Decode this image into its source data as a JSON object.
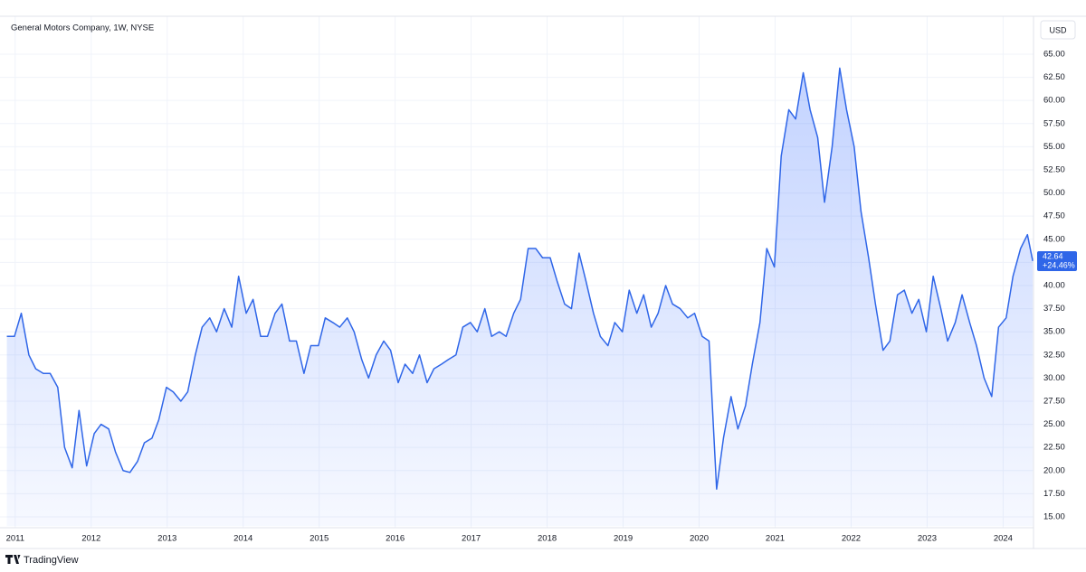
{
  "chart_data": {
    "type": "area",
    "title": "General Motors Company, 1W, NYSE",
    "currency": "USD",
    "brand": "TradingView",
    "change_label": "+24.46%",
    "color": "#2f66e8",
    "grid": true,
    "x": [
      2010.89,
      2010.99,
      2011.08,
      2011.18,
      2011.27,
      2011.37,
      2011.46,
      2011.56,
      2011.65,
      2011.75,
      2011.84,
      2011.94,
      2012.04,
      2012.13,
      2012.23,
      2012.32,
      2012.42,
      2012.51,
      2012.61,
      2012.7,
      2012.8,
      2012.89,
      2012.99,
      2013.08,
      2013.18,
      2013.27,
      2013.37,
      2013.46,
      2013.56,
      2013.65,
      2013.75,
      2013.85,
      2013.94,
      2014.04,
      2014.13,
      2014.23,
      2014.32,
      2014.42,
      2014.51,
      2014.61,
      2014.7,
      2014.8,
      2014.89,
      2014.99,
      2015.08,
      2015.18,
      2015.27,
      2015.37,
      2015.46,
      2015.56,
      2015.65,
      2015.75,
      2015.85,
      2015.94,
      2016.04,
      2016.13,
      2016.23,
      2016.32,
      2016.42,
      2016.51,
      2016.61,
      2016.7,
      2016.8,
      2016.89,
      2016.99,
      2017.08,
      2017.18,
      2017.27,
      2017.37,
      2017.46,
      2017.56,
      2017.65,
      2017.75,
      2017.85,
      2017.94,
      2018.04,
      2018.13,
      2018.23,
      2018.32,
      2018.42,
      2018.51,
      2018.61,
      2018.7,
      2018.8,
      2018.89,
      2018.99,
      2019.08,
      2019.18,
      2019.27,
      2019.37,
      2019.46,
      2019.56,
      2019.65,
      2019.75,
      2019.85,
      2019.94,
      2020.04,
      2020.13,
      2020.23,
      2020.32,
      2020.42,
      2020.51,
      2020.61,
      2020.7,
      2020.8,
      2020.89,
      2020.99,
      2021.08,
      2021.18,
      2021.27,
      2021.37,
      2021.46,
      2021.56,
      2021.65,
      2021.75,
      2021.85,
      2021.94,
      2022.04,
      2022.13,
      2022.23,
      2022.32,
      2022.42,
      2022.51,
      2022.61,
      2022.7,
      2022.8,
      2022.89,
      2022.99,
      2023.08,
      2023.18,
      2023.27,
      2023.37,
      2023.46,
      2023.56,
      2023.65,
      2023.75,
      2023.85,
      2023.94,
      2024.04,
      2024.13,
      2024.23,
      2024.32,
      2024.39
    ],
    "values": [
      34.5,
      34.5,
      37,
      32.5,
      31,
      30.5,
      30.5,
      29,
      22.5,
      20.3,
      26.5,
      20.5,
      24,
      25,
      24.5,
      22,
      20,
      19.8,
      21,
      23,
      23.5,
      25.5,
      29,
      28.5,
      27.5,
      28.5,
      32.5,
      35.5,
      36.5,
      35,
      37.5,
      35.5,
      41,
      37,
      38.5,
      34.5,
      34.5,
      37,
      38,
      34,
      34,
      30.5,
      33.5,
      33.5,
      36.5,
      36,
      35.5,
      36.5,
      35,
      32,
      30,
      32.5,
      34,
      33,
      29.5,
      31.5,
      30.5,
      32.5,
      29.5,
      31,
      31.5,
      32,
      32.5,
      35.5,
      36,
      35,
      37.5,
      34.5,
      35,
      34.5,
      37,
      38.5,
      44,
      44,
      43,
      43,
      40.5,
      38,
      37.5,
      43.5,
      40.5,
      37,
      34.5,
      33.5,
      36,
      35,
      39.5,
      37,
      39,
      35.5,
      37,
      40,
      38,
      37.5,
      36.5,
      37,
      34.5,
      34,
      18,
      23.5,
      28,
      24.5,
      27,
      31.5,
      36,
      44,
      42,
      54,
      59,
      58,
      63,
      59,
      56,
      49,
      55,
      63.5,
      59,
      55,
      48,
      43,
      38,
      33,
      34,
      39,
      39.5,
      37,
      38.5,
      35,
      41,
      37.5,
      34,
      36,
      39,
      36,
      33.5,
      30,
      28,
      35.5,
      36.5,
      41,
      44,
      45.5,
      42.64
    ],
    "xlim": [
      2010.8,
      2024.4
    ],
    "xticks": [
      2011,
      2012,
      2013,
      2014,
      2015,
      2016,
      2017,
      2018,
      2019,
      2020,
      2021,
      2022,
      2023,
      2024
    ],
    "ylim": [
      14,
      69.1
    ],
    "yticks": [
      {
        "value": 15,
        "label": "15.00"
      },
      {
        "value": 17.5,
        "label": "17.50"
      },
      {
        "value": 20,
        "label": "20.00"
      },
      {
        "value": 22.5,
        "label": "22.50"
      },
      {
        "value": 25,
        "label": "25.00"
      },
      {
        "value": 27.5,
        "label": "27.50"
      },
      {
        "value": 30,
        "label": "30.00"
      },
      {
        "value": 32.5,
        "label": "32.50"
      },
      {
        "value": 35,
        "label": "35.00"
      },
      {
        "value": 37.5,
        "label": "37.50"
      },
      {
        "value": 40,
        "label": "40.00"
      },
      {
        "value": 42.5,
        "label": "42.50"
      },
      {
        "value": 45,
        "label": "45.00"
      },
      {
        "value": 47.5,
        "label": "47.50"
      },
      {
        "value": 50,
        "label": "50.00"
      },
      {
        "value": 52.5,
        "label": "52.50"
      },
      {
        "value": 55,
        "label": "55.00"
      },
      {
        "value": 57.5,
        "label": "57.50"
      },
      {
        "value": 60,
        "label": "60.00"
      },
      {
        "value": 62.5,
        "label": "62.50"
      },
      {
        "value": 65,
        "label": "65.00"
      }
    ]
  }
}
